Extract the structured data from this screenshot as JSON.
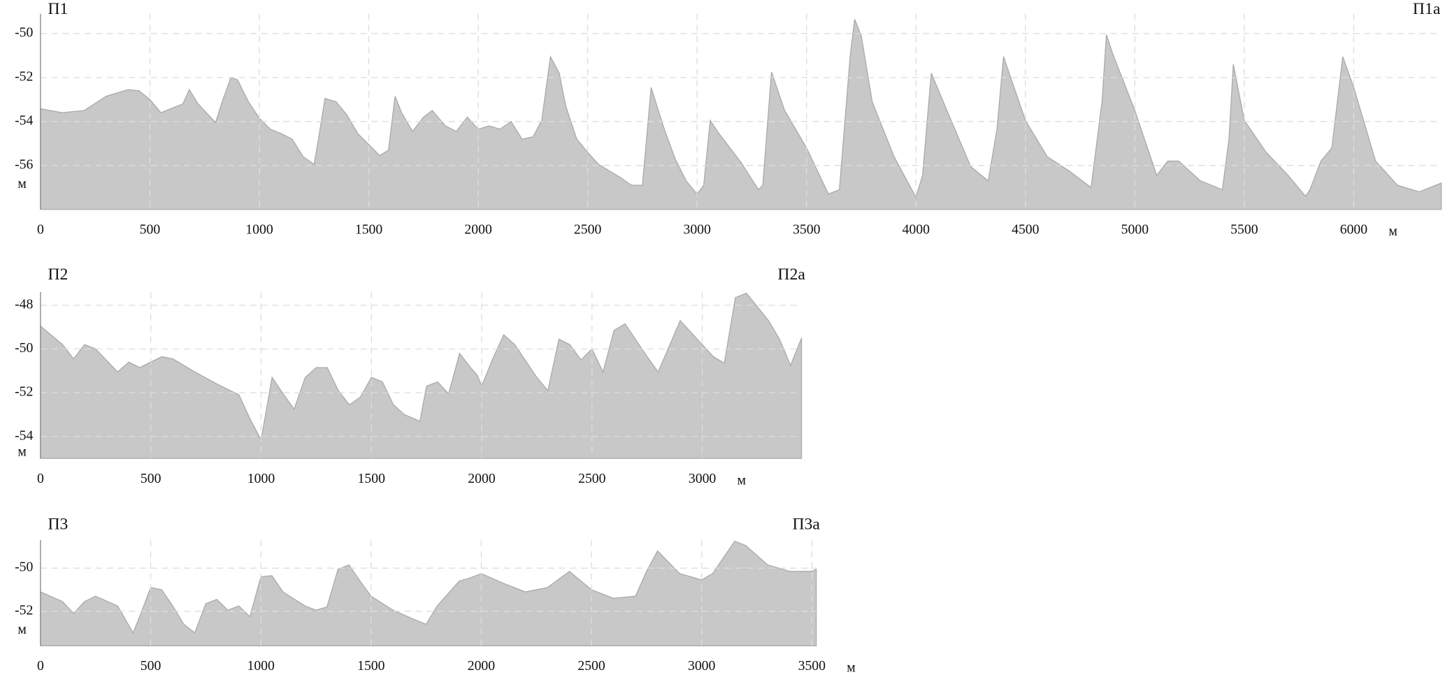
{
  "chart_data": [
    {
      "type": "area",
      "left_label": "П1",
      "right_label": "П1а",
      "y_unit": "м",
      "x_unit": "м",
      "color": "#c8c8c8",
      "grid": true,
      "xlim": [
        0,
        6400
      ],
      "ylim": [
        -58,
        -49.1
      ],
      "xticks": [
        0,
        500,
        1000,
        1500,
        2000,
        2500,
        3000,
        3500,
        4000,
        4500,
        5000,
        5500,
        6000
      ],
      "yticks": [
        -50,
        -52,
        -54,
        -56
      ],
      "x": [
        0,
        100,
        200,
        300,
        400,
        450,
        500,
        550,
        600,
        650,
        680,
        720,
        800,
        830,
        870,
        900,
        950,
        1000,
        1050,
        1100,
        1150,
        1200,
        1250,
        1270,
        1300,
        1350,
        1400,
        1450,
        1500,
        1550,
        1590,
        1620,
        1650,
        1700,
        1750,
        1790,
        1850,
        1900,
        1950,
        2000,
        2050,
        2100,
        2150,
        2200,
        2250,
        2290,
        2330,
        2370,
        2400,
        2450,
        2500,
        2550,
        2600,
        2650,
        2700,
        2750,
        2790,
        2850,
        2900,
        2950,
        3000,
        3030,
        3060,
        3100,
        3200,
        3280,
        3300,
        3340,
        3400,
        3500,
        3600,
        3650,
        3700,
        3720,
        3750,
        3800,
        3900,
        4000,
        4030,
        4070,
        4150,
        4250,
        4330,
        4370,
        4400,
        4500,
        4600,
        4700,
        4800,
        4850,
        4870,
        4900,
        5000,
        5100,
        5150,
        5200,
        5300,
        5400,
        5430,
        5450,
        5500,
        5600,
        5700,
        5780,
        5800,
        5850,
        5900,
        5950,
        6000,
        6100,
        6200,
        6300,
        6400
      ],
      "values": [
        -53.42,
        -53.6,
        -53.5,
        -52.85,
        -52.55,
        -52.6,
        -53.0,
        -53.6,
        -53.4,
        -53.2,
        -52.55,
        -53.2,
        -54.05,
        -53.1,
        -52.0,
        -52.1,
        -53.1,
        -53.85,
        -54.35,
        -54.55,
        -54.8,
        -55.6,
        -55.95,
        -54.8,
        -52.95,
        -53.1,
        -53.7,
        -54.55,
        -55.05,
        -55.55,
        -55.3,
        -52.85,
        -53.6,
        -54.45,
        -53.8,
        -53.5,
        -54.2,
        -54.45,
        -53.8,
        -54.35,
        -54.2,
        -54.35,
        -54.0,
        -54.8,
        -54.7,
        -53.95,
        -51.05,
        -51.8,
        -53.3,
        -54.8,
        -55.4,
        -55.95,
        -56.25,
        -56.55,
        -56.9,
        -56.9,
        -52.45,
        -54.35,
        -55.7,
        -56.7,
        -57.3,
        -56.9,
        -53.95,
        -54.55,
        -55.85,
        -57.1,
        -56.9,
        -51.75,
        -53.5,
        -55.2,
        -57.3,
        -57.1,
        -50.95,
        -49.35,
        -50.1,
        -53.1,
        -55.6,
        -57.45,
        -56.45,
        -51.8,
        -53.7,
        -56.05,
        -56.7,
        -54.35,
        -51.05,
        -53.95,
        -55.6,
        -56.25,
        -57.0,
        -53.1,
        -50.05,
        -50.95,
        -53.5,
        -56.45,
        -55.8,
        -55.8,
        -56.7,
        -57.1,
        -54.8,
        -51.4,
        -53.95,
        -55.4,
        -56.45,
        -57.4,
        -57.1,
        -55.8,
        -55.2,
        -51.05,
        -52.45,
        -55.8,
        -56.9,
        -57.2,
        -56.8
      ]
    },
    {
      "type": "area",
      "left_label": "П2",
      "right_label": "П2а",
      "y_unit": "м",
      "x_unit": "м",
      "color": "#c8c8c8",
      "grid": true,
      "xlim": [
        0,
        3450
      ],
      "ylim": [
        -55,
        -47.4
      ],
      "xticks": [
        0,
        500,
        1000,
        1500,
        2000,
        2500,
        3000
      ],
      "yticks": [
        -48,
        -50,
        -52,
        -54
      ],
      "x": [
        0,
        100,
        150,
        200,
        250,
        350,
        400,
        450,
        550,
        600,
        700,
        800,
        900,
        950,
        1000,
        1050,
        1100,
        1150,
        1200,
        1250,
        1300,
        1350,
        1400,
        1450,
        1500,
        1550,
        1600,
        1650,
        1720,
        1750,
        1800,
        1850,
        1900,
        1950,
        1980,
        2000,
        2050,
        2100,
        2150,
        2250,
        2300,
        2350,
        2400,
        2450,
        2500,
        2550,
        2600,
        2650,
        2750,
        2800,
        2900,
        2950,
        3050,
        3100,
        3150,
        3200,
        3300,
        3350,
        3400,
        3450
      ],
      "values": [
        -48.95,
        -49.8,
        -50.45,
        -49.8,
        -50.0,
        -51.05,
        -50.6,
        -50.85,
        -50.35,
        -50.45,
        -51.05,
        -51.6,
        -52.1,
        -53.2,
        -54.15,
        -51.3,
        -52.05,
        -52.75,
        -51.3,
        -50.85,
        -50.85,
        -51.9,
        -52.55,
        -52.2,
        -51.3,
        -51.5,
        -52.55,
        -53.0,
        -53.3,
        -51.7,
        -51.5,
        -52.05,
        -50.2,
        -50.85,
        -51.2,
        -51.7,
        -50.45,
        -49.35,
        -49.8,
        -51.3,
        -51.9,
        -49.55,
        -49.8,
        -50.5,
        -50.0,
        -51.05,
        -49.15,
        -48.85,
        -50.35,
        -51.05,
        -48.7,
        -49.25,
        -50.35,
        -50.65,
        -47.65,
        -47.45,
        -48.7,
        -49.55,
        -50.75,
        -49.5
      ]
    },
    {
      "type": "area",
      "left_label": "П3",
      "right_label": "П3а",
      "y_unit": "м",
      "x_unit": "м",
      "color": "#c8c8c8",
      "grid": true,
      "xlim": [
        0,
        3520
      ],
      "ylim": [
        -53.6,
        -48.7
      ],
      "xticks": [
        0,
        500,
        1000,
        1500,
        2000,
        2500,
        3000,
        3500
      ],
      "yticks": [
        -50,
        -52
      ],
      "x": [
        0,
        100,
        150,
        200,
        250,
        350,
        420,
        450,
        500,
        550,
        600,
        650,
        700,
        750,
        800,
        850,
        900,
        950,
        1000,
        1050,
        1100,
        1200,
        1250,
        1300,
        1350,
        1400,
        1450,
        1500,
        1600,
        1700,
        1750,
        1800,
        1900,
        1950,
        2000,
        2100,
        2200,
        2300,
        2400,
        2500,
        2600,
        2700,
        2750,
        2800,
        2900,
        3000,
        3050,
        3150,
        3200,
        3300,
        3400,
        3500,
        3520
      ],
      "values": [
        -51.1,
        -51.55,
        -52.1,
        -51.55,
        -51.3,
        -51.75,
        -53.0,
        -52.25,
        -50.9,
        -51.0,
        -51.75,
        -52.6,
        -53.0,
        -51.65,
        -51.45,
        -51.95,
        -51.75,
        -52.25,
        -50.4,
        -50.35,
        -51.1,
        -51.75,
        -51.95,
        -51.8,
        -50.05,
        -49.85,
        -50.6,
        -51.3,
        -51.95,
        -52.4,
        -52.6,
        -51.75,
        -50.6,
        -50.45,
        -50.25,
        -50.7,
        -51.1,
        -50.9,
        -50.15,
        -51.0,
        -51.4,
        -51.3,
        -50.15,
        -49.2,
        -50.25,
        -50.55,
        -50.25,
        -48.75,
        -48.95,
        -49.85,
        -50.15,
        -50.15,
        -50.05
      ]
    }
  ]
}
